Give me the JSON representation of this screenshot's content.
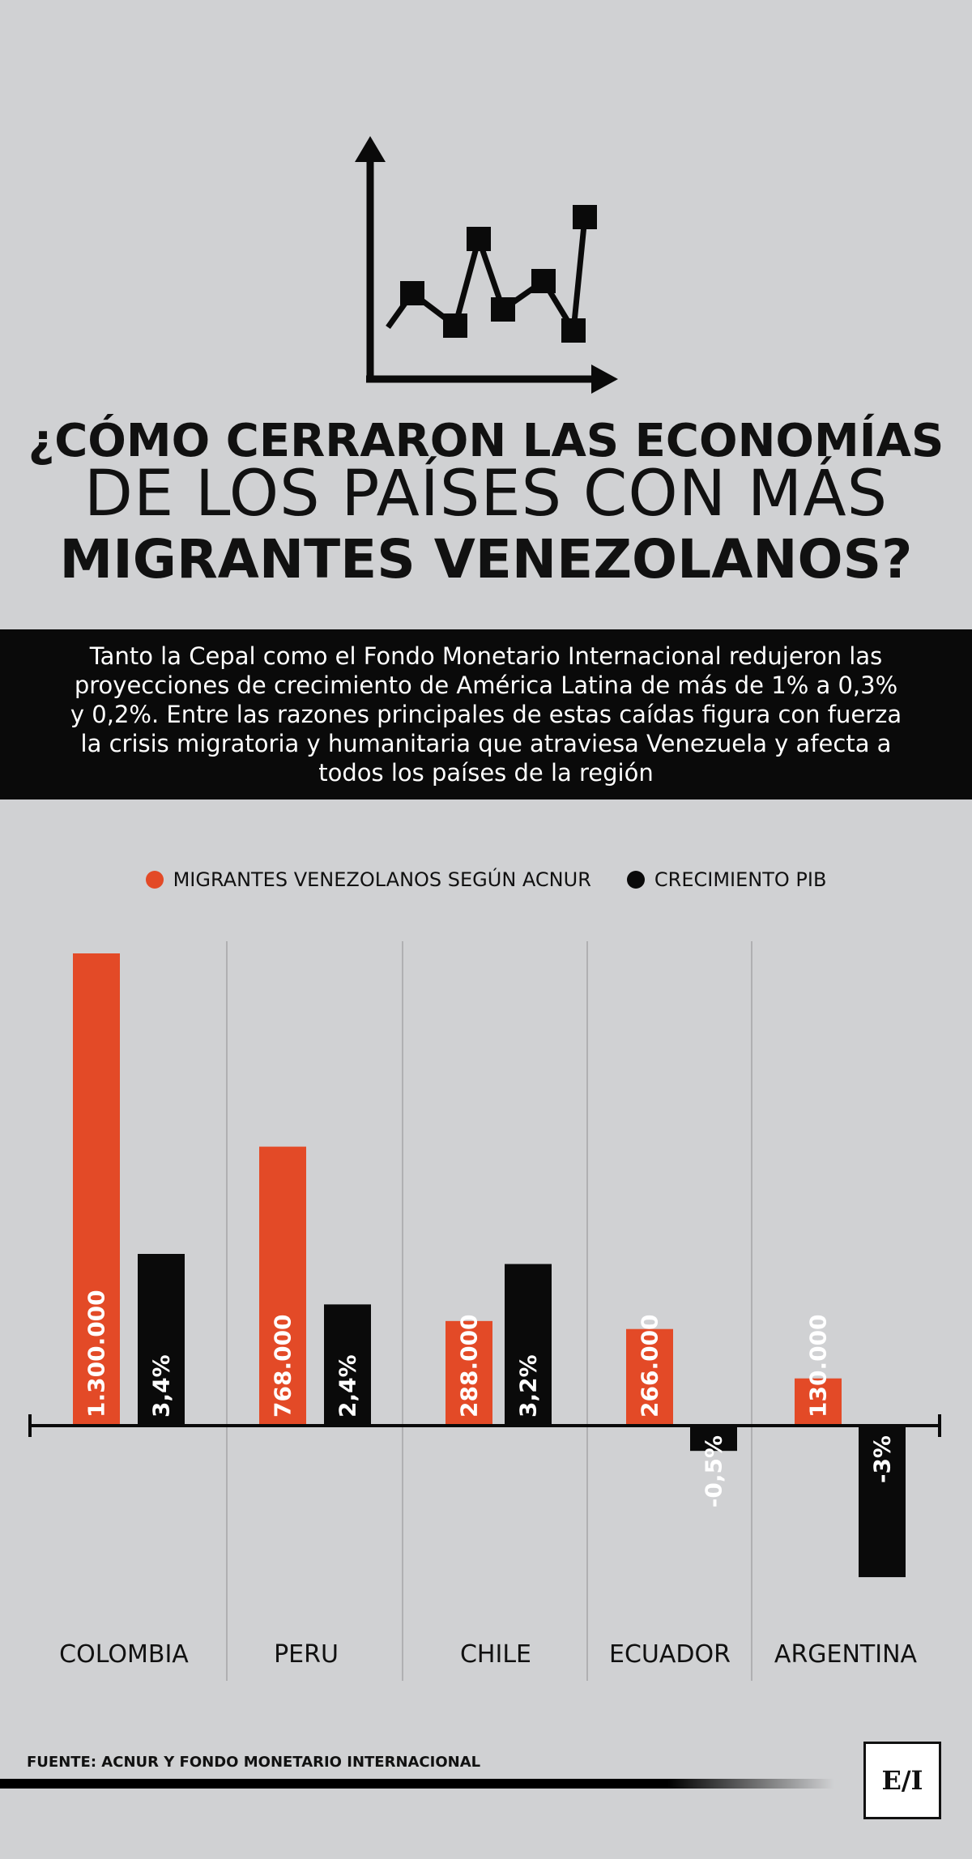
{
  "title": {
    "line1": "¿CÓMO CERRARON LAS ECONOMÍAS",
    "line2": "DE LOS PAÍSES CON MÁS",
    "line3": "MIGRANTES VENEZOLANOS?"
  },
  "intro": "Tanto la Cepal como el Fondo Monetario Internacional redujeron las proyecciones de crecimiento de América Latina de más de 1% a 0,3% y 0,2%. Entre las razones principales de estas caídas figura con fuerza la crisis migratoria y humanitaria que atraviesa Venezuela y afecta a todos los países de la región",
  "legend": {
    "migrants": "MIGRANTES VENEZOLANOS SEGÚN ACNUR",
    "gdp": "CRECIMIENTO PIB"
  },
  "colors": {
    "migrants": "#e34a27",
    "gdp": "#0a0a0a",
    "background": "#d0d1d3"
  },
  "chart_data": {
    "type": "bar",
    "categories": [
      "COLOMBIA",
      "PERU",
      "CHILE",
      "ECUADOR",
      "ARGENTINA"
    ],
    "series": [
      {
        "name": "MIGRANTES VENEZOLANOS SEGÚN ACNUR",
        "values": [
          1300000,
          768000,
          288000,
          266000,
          130000
        ],
        "labels": [
          "1.300.000",
          "768.000",
          "288.000",
          "266.000",
          "130.000"
        ]
      },
      {
        "name": "CRECIMIENTO PIB",
        "values": [
          3.4,
          2.4,
          3.2,
          -0.5,
          -3
        ],
        "labels": [
          "3,4%",
          "2,4%",
          "3,2%",
          "-0,5%",
          "-3%"
        ]
      }
    ],
    "title": "",
    "xlabel": "",
    "ylabel": ""
  },
  "source": "FUENTE: ACNUR Y FONDO MONETARIO INTERNACIONAL",
  "logo": "E/I",
  "icons": [
    "line-chart-icon"
  ]
}
